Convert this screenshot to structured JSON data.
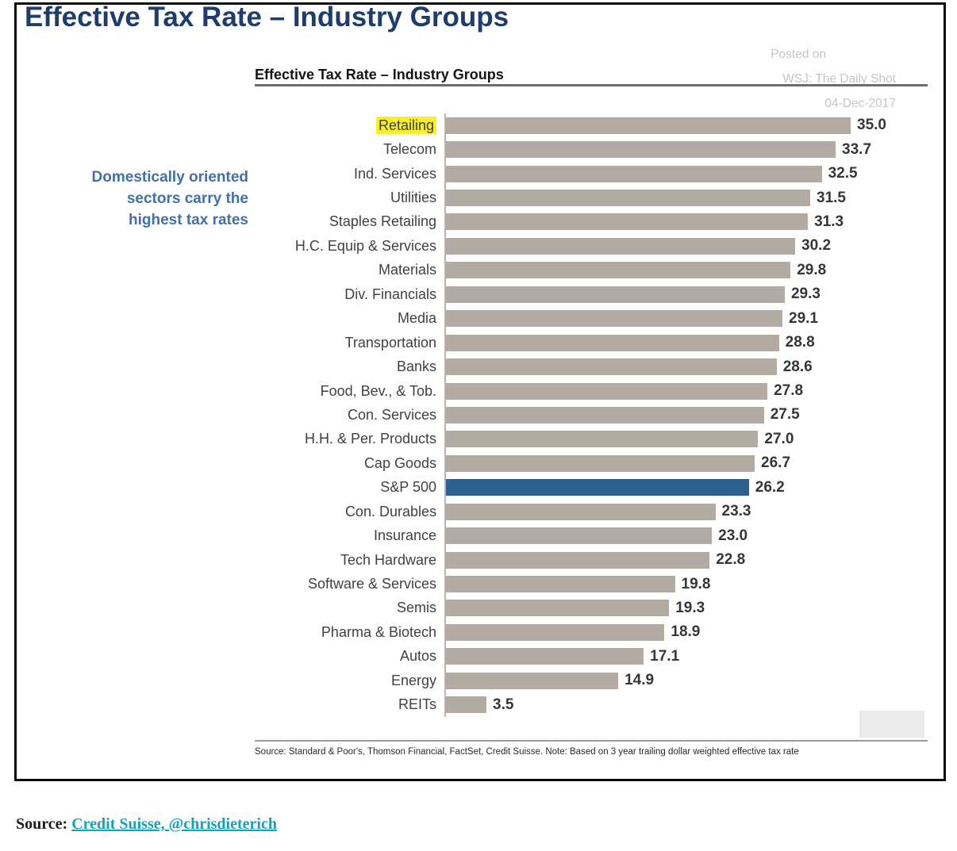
{
  "page_title": "Effective Tax Rate – Industry Groups",
  "chart_data": {
    "type": "bar",
    "orientation": "horizontal",
    "title": "Effective Tax Rate – Industry Groups",
    "categories": [
      "Retailing",
      "Telecom",
      "Ind. Services",
      "Utilities",
      "Staples Retailing",
      "H.C. Equip & Services",
      "Materials",
      "Div. Financials",
      "Media",
      "Transportation",
      "Banks",
      "Food, Bev., & Tob.",
      "Con. Services",
      "H.H. & Per. Products",
      "Cap Goods",
      "S&P 500",
      "Con. Durables",
      "Insurance",
      "Tech Hardware",
      "Software & Services",
      "Semis",
      "Pharma & Biotech",
      "Autos",
      "Energy",
      "REITs"
    ],
    "values": [
      35.0,
      33.7,
      32.5,
      31.5,
      31.3,
      30.2,
      29.8,
      29.3,
      29.1,
      28.8,
      28.6,
      27.8,
      27.5,
      27.0,
      26.7,
      26.2,
      23.3,
      23.0,
      22.8,
      19.8,
      19.3,
      18.9,
      17.1,
      14.9,
      3.5
    ],
    "xlim": [
      0,
      35
    ],
    "value_labels": true,
    "grid": false,
    "legend": null,
    "highlight_category": "Retailing",
    "emphasis_category": "S&P 500",
    "annotation": {
      "lines": [
        "Domestically oriented",
        "sectors carry the",
        "highest tax rates"
      ],
      "color": "#4270a8"
    },
    "watermark": {
      "lines": [
        "Posted on",
        "WSJ: The Daily Shot",
        "04-Dec-2017"
      ],
      "color": "#c6c6c6"
    },
    "source_note": "Source: Standard & Poor's, Thomson Financial, FactSet, Credit Suisse. Note: Based on 3 year trailing dollar weighted effective tax rate",
    "colors": {
      "bar": "#b3aaa2",
      "emphasis_bar": "#2d608f",
      "label_highlight": "#f7ee2a",
      "title": "#1e3c6e",
      "axis_line": "#b5b5b5"
    }
  },
  "footer": {
    "source_label": "Source:",
    "link_text": "Credit Suisse, @chrisdieterich",
    "link_color": "#17a1b8"
  }
}
